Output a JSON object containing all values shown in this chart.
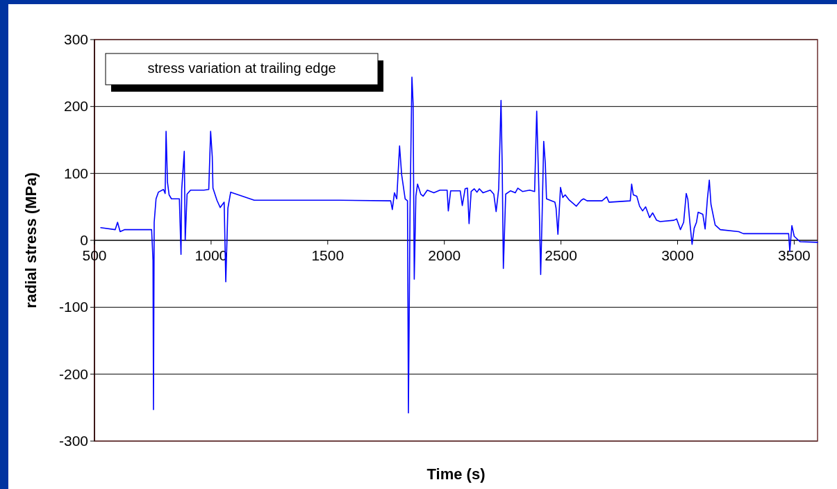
{
  "chart_data": {
    "type": "line",
    "xlabel": "Time (s)",
    "ylabel": "radial stress (MPa)",
    "annotations": [
      "stress variation at trailing edge"
    ],
    "xlim": [
      500,
      3600
    ],
    "xticks": [
      500,
      1000,
      1500,
      2000,
      2500,
      3000,
      3500
    ],
    "ylim": [
      -300,
      300
    ],
    "yticks": [
      -300,
      -200,
      -100,
      0,
      100,
      200,
      300
    ],
    "grid": "y",
    "marker": "none",
    "line_style": "solid",
    "series": [
      {
        "color": "#0000ff",
        "x": [
          527,
          589,
          599,
          610,
          630,
          745,
          751,
          753,
          756,
          764,
          774,
          796,
          803,
          807,
          813,
          820,
          830,
          864,
          871,
          874,
          885,
          889,
          897,
          912,
          969,
          990,
          998,
          1005,
          1008,
          1025,
          1039,
          1056,
          1063,
          1072,
          1084,
          1185,
          1549,
          1770,
          1777,
          1786,
          1796,
          1808,
          1817,
          1832,
          1842,
          1846,
          1853,
          1861,
          1866,
          1871,
          1878,
          1885,
          1899,
          1909,
          1927,
          1955,
          1981,
          2012,
          2017,
          2027,
          2068,
          2077,
          2089,
          2099,
          2106,
          2115,
          2128,
          2140,
          2150,
          2166,
          2197,
          2212,
          2222,
          2233,
          2243,
          2248,
          2253,
          2263,
          2284,
          2304,
          2315,
          2335,
          2366,
          2387,
          2396,
          2405,
          2413,
          2419,
          2426,
          2433,
          2438,
          2474,
          2479,
          2487,
          2498,
          2508,
          2518,
          2536,
          2566,
          2587,
          2597,
          2612,
          2676,
          2696,
          2706,
          2797,
          2803,
          2810,
          2825,
          2837,
          2850,
          2863,
          2880,
          2893,
          2910,
          2925,
          2984,
          2996,
          3012,
          3026,
          3037,
          3044,
          3052,
          3062,
          3071,
          3081,
          3088,
          3108,
          3118,
          3128,
          3136,
          3143,
          3161,
          3183,
          3262,
          3282,
          3476,
          3481,
          3490,
          3500,
          3525,
          3600
        ],
        "values": [
          19,
          16,
          27,
          13,
          16,
          16,
          -30,
          -253,
          27,
          62,
          72,
          76,
          70,
          163,
          87,
          68,
          62,
          62,
          -21,
          76,
          133,
          0,
          69,
          75,
          75,
          76,
          163,
          125,
          78,
          60,
          49,
          57,
          -62,
          48,
          72,
          60,
          60,
          59,
          46,
          71,
          62,
          141,
          98,
          62,
          59,
          -258,
          48,
          244,
          205,
          -58,
          66,
          84,
          69,
          66,
          75,
          71,
          75,
          75,
          44,
          74,
          74,
          52,
          77,
          78,
          25,
          73,
          77,
          72,
          77,
          71,
          75,
          69,
          43,
          77,
          209,
          112,
          -42,
          69,
          74,
          71,
          78,
          73,
          75,
          73,
          193,
          80,
          -51,
          34,
          148,
          114,
          62,
          57,
          48,
          9,
          79,
          64,
          68,
          60,
          51,
          60,
          62,
          59,
          59,
          65,
          57,
          59,
          84,
          68,
          66,
          51,
          44,
          50,
          34,
          41,
          30,
          28,
          30,
          32,
          16,
          27,
          70,
          61,
          29,
          -6,
          18,
          27,
          42,
          39,
          17,
          63,
          90,
          54,
          23,
          16,
          13,
          10,
          10,
          -16,
          22,
          6,
          -2,
          -3
        ]
      }
    ]
  }
}
